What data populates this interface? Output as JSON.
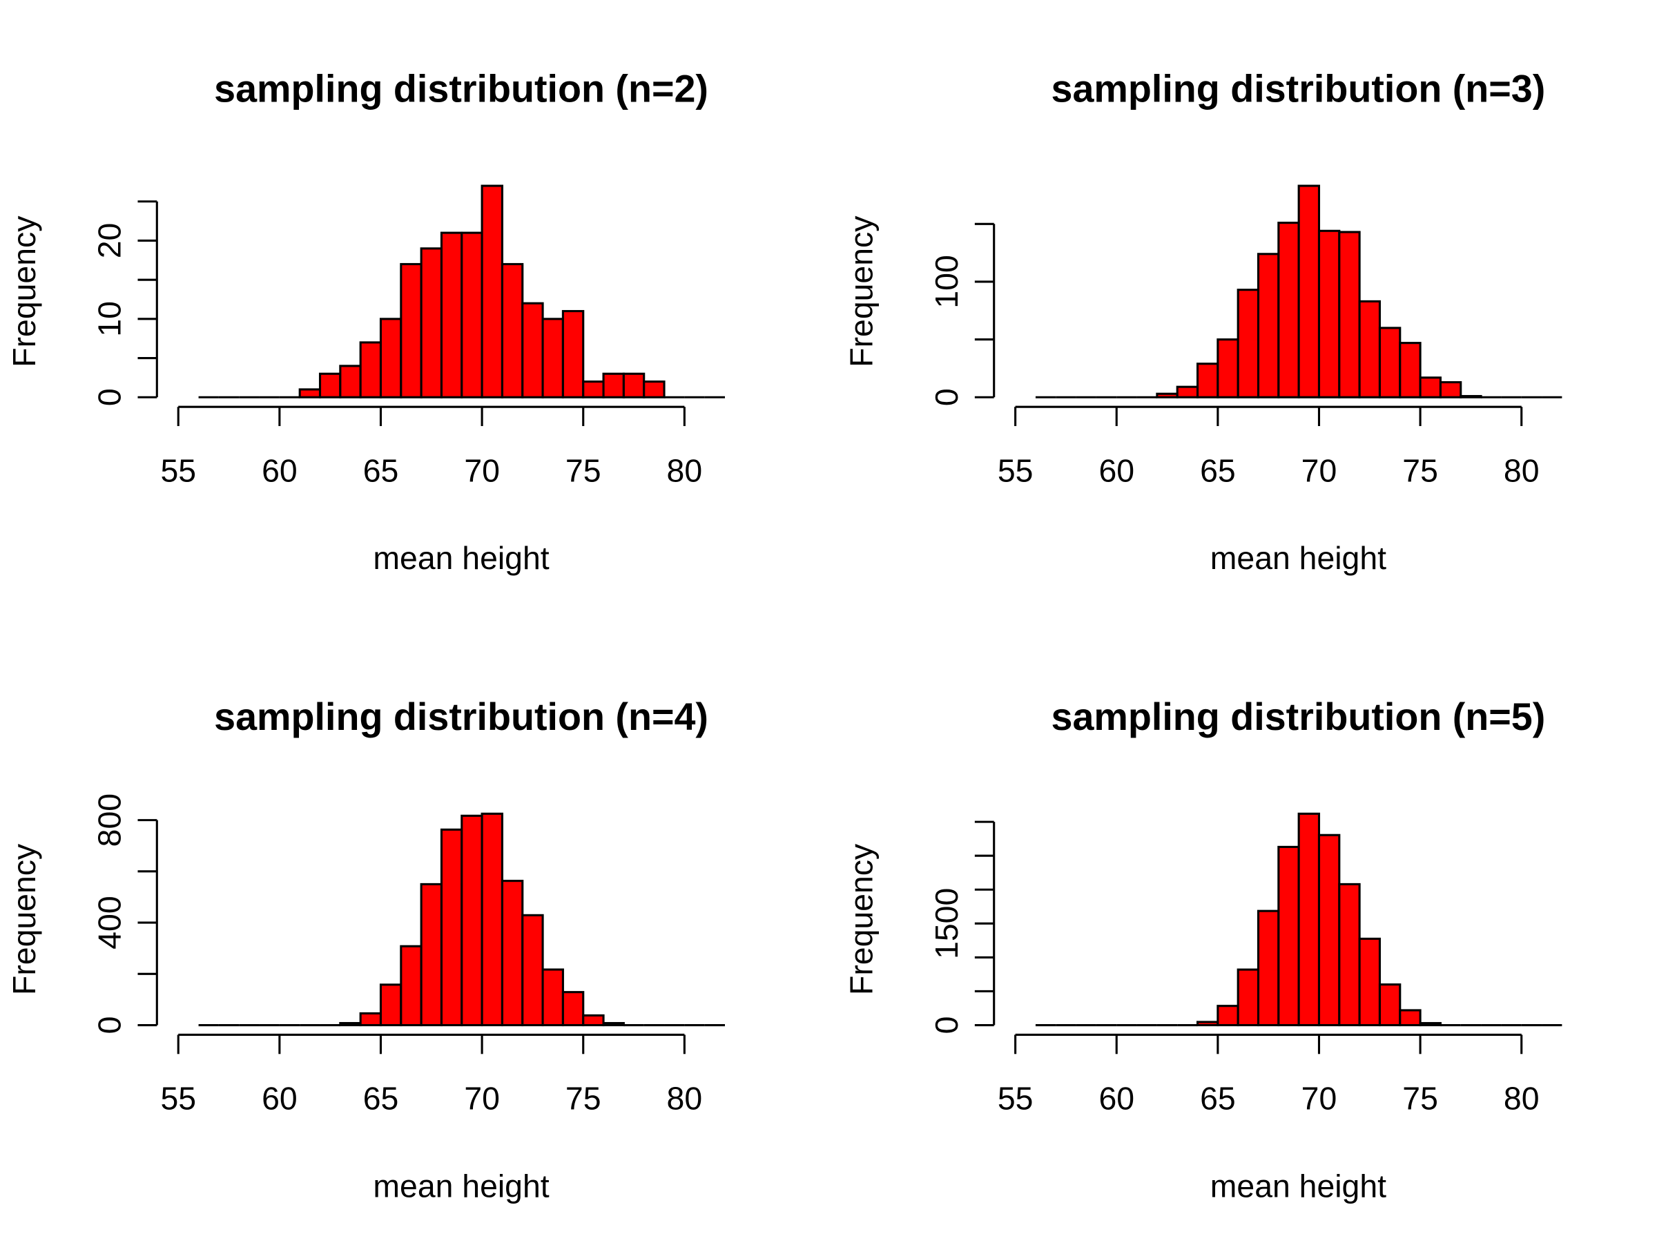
{
  "chart_data": [
    {
      "type": "histogram",
      "title": "sampling distribution (n=2)",
      "xlabel": "mean height",
      "ylabel": "Frequency",
      "color": "#ff0000",
      "bins": [
        56,
        57,
        58,
        59,
        60,
        61,
        62,
        63,
        64,
        65,
        66,
        67,
        68,
        69,
        70,
        71,
        72,
        73,
        74,
        75,
        76,
        77,
        78,
        79,
        80,
        81,
        82
      ],
      "values": [
        0,
        0,
        0,
        0,
        0,
        1,
        3,
        4,
        7,
        10,
        17,
        19,
        21,
        21,
        27,
        17,
        12,
        10,
        11,
        2,
        3,
        3,
        2,
        0,
        0,
        0
      ],
      "xlim": [
        55,
        82
      ],
      "xticks": [
        55,
        60,
        65,
        70,
        75,
        80
      ],
      "ylim": [
        0,
        27
      ],
      "yticks": [
        0,
        10,
        20
      ],
      "minor_yticks": [
        5,
        15,
        25
      ]
    },
    {
      "type": "histogram",
      "title": "sampling distribution (n=3)",
      "xlabel": "mean height",
      "ylabel": "Frequency",
      "color": "#ff0000",
      "bins": [
        56,
        57,
        58,
        59,
        60,
        61,
        62,
        63,
        64,
        65,
        66,
        67,
        68,
        69,
        70,
        71,
        72,
        73,
        74,
        75,
        76,
        77,
        78,
        79,
        80,
        81,
        82
      ],
      "values": [
        0,
        0,
        0,
        0,
        0,
        0,
        3,
        9,
        29,
        50,
        93,
        124,
        151,
        183,
        144,
        143,
        83,
        60,
        47,
        17,
        13,
        1,
        0,
        0,
        0,
        0
      ],
      "xlim": [
        55,
        82
      ],
      "xticks": [
        55,
        60,
        65,
        70,
        75,
        80
      ],
      "ylim": [
        0,
        183
      ],
      "yticks": [
        0,
        100
      ],
      "minor_yticks": [
        50,
        150
      ]
    },
    {
      "type": "histogram",
      "title": "sampling distribution (n=4)",
      "xlabel": "mean height",
      "ylabel": "Frequency",
      "color": "#ff0000",
      "bins": [
        56,
        57,
        58,
        59,
        60,
        61,
        62,
        63,
        64,
        65,
        66,
        67,
        68,
        69,
        70,
        71,
        72,
        73,
        74,
        75,
        76,
        77,
        78,
        79,
        80,
        81,
        82
      ],
      "values": [
        0,
        0,
        0,
        0,
        0,
        0,
        0,
        8,
        46,
        158,
        308,
        550,
        763,
        817,
        825,
        563,
        429,
        217,
        129,
        38,
        8,
        0,
        0,
        0,
        0,
        0
      ],
      "xlim": [
        55,
        82
      ],
      "xticks": [
        55,
        60,
        65,
        70,
        75,
        80
      ],
      "ylim": [
        0,
        825
      ],
      "yticks": [
        0,
        400,
        800
      ],
      "minor_yticks": [
        200,
        600
      ]
    },
    {
      "type": "histogram",
      "title": "sampling distribution (n=5)",
      "xlabel": "mean height",
      "ylabel": "Frequency",
      "color": "#ff0000",
      "bins": [
        56,
        57,
        58,
        59,
        60,
        61,
        62,
        63,
        64,
        65,
        66,
        67,
        68,
        69,
        70,
        71,
        72,
        73,
        74,
        75,
        76,
        77,
        78,
        79,
        80,
        81,
        82
      ],
      "values": [
        0,
        0,
        0,
        0,
        0,
        0,
        0,
        0,
        47,
        284,
        820,
        1685,
        2630,
        3120,
        2805,
        2080,
        1275,
        600,
        220,
        30,
        0,
        0,
        0,
        0,
        0,
        0
      ],
      "xlim": [
        55,
        82
      ],
      "xticks": [
        55,
        60,
        65,
        70,
        75,
        80
      ],
      "ylim": [
        0,
        3120
      ],
      "yticks": [
        0,
        1500
      ],
      "minor_yticks": [
        500,
        1000,
        2000,
        2500,
        3000
      ]
    }
  ]
}
